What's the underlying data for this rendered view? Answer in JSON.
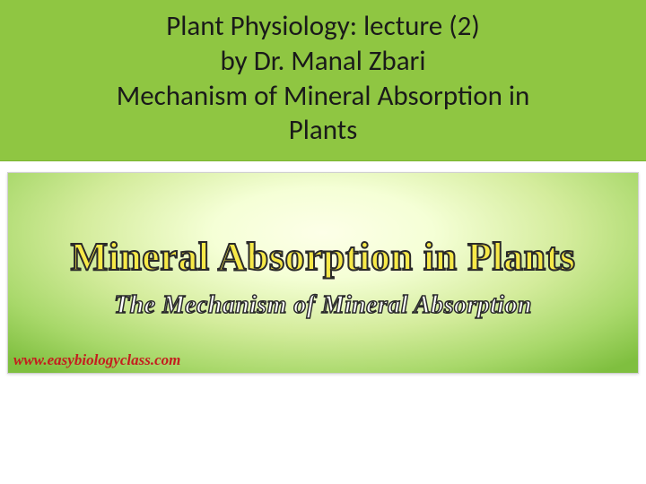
{
  "header": {
    "line1": "Plant Physiology:   lecture (2)",
    "line2": "by Dr. Manal Zbari",
    "line3": "Mechanism of Mineral Absorption in",
    "line4": "Plants",
    "bg_color": "#8fc642",
    "text_color": "#1a1a1a",
    "fontsize": 31
  },
  "banner": {
    "big_title": "Mineral Absorption in Plants",
    "big_title_color": "#f7e948",
    "big_title_stroke": "#2a2a2a",
    "big_title_fontsize": 44,
    "subtitle": "The Mechanism of Mineral Absorption",
    "subtitle_color": "#ffffff",
    "subtitle_stroke": "#2a2a2a",
    "subtitle_fontsize": 28,
    "watermark": "www.easybiologyclass.com",
    "watermark_color": "#c41e1e",
    "gradient_inner": "#fdffe8",
    "gradient_mid": "#d4ec9c",
    "gradient_outer": "#7fbf3f"
  }
}
